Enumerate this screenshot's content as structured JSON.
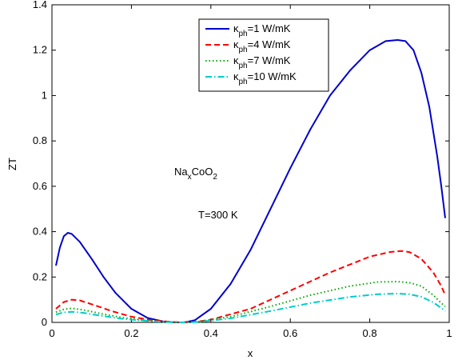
{
  "chart_data": {
    "type": "line",
    "xlabel": "x",
    "ylabel": "ZT",
    "xlim": [
      0,
      1
    ],
    "ylim": [
      0,
      1.4
    ],
    "xticks": [
      0,
      0.2,
      0.4,
      0.6,
      0.8,
      1
    ],
    "xtick_labels": [
      "0",
      "0.2",
      "0.4",
      "0.6",
      "0.8",
      "1"
    ],
    "yticks": [
      0,
      0.2,
      0.4,
      0.6,
      0.8,
      1,
      1.2,
      1.4
    ],
    "ytick_labels": [
      "0",
      "0.2",
      "0.4",
      "0.6",
      "0.8",
      "1",
      "1.2",
      "1.4"
    ],
    "grid": false,
    "legend_position": "top-center",
    "annotations": {
      "compound": {
        "base": "Na",
        "sub1": "x",
        "mid": "CoO",
        "sub2": "2"
      },
      "temperature": "T=300 K"
    },
    "series": [
      {
        "legend": {
          "symbol": "κ",
          "sub": "ph",
          "text": "=1 W/mK"
        },
        "color": "#0000cc",
        "dash": "solid",
        "x": [
          0.01,
          0.02,
          0.03,
          0.04,
          0.05,
          0.07,
          0.1,
          0.13,
          0.16,
          0.2,
          0.24,
          0.28,
          0.31,
          0.33,
          0.34,
          0.36,
          0.4,
          0.45,
          0.5,
          0.55,
          0.6,
          0.65,
          0.7,
          0.75,
          0.8,
          0.84,
          0.87,
          0.89,
          0.91,
          0.93,
          0.95,
          0.97,
          0.98,
          0.99
        ],
        "y": [
          0.25,
          0.33,
          0.38,
          0.395,
          0.39,
          0.355,
          0.28,
          0.2,
          0.13,
          0.06,
          0.02,
          0.004,
          0.0,
          0.0,
          0.002,
          0.01,
          0.06,
          0.17,
          0.32,
          0.5,
          0.68,
          0.85,
          1.0,
          1.11,
          1.2,
          1.24,
          1.245,
          1.24,
          1.2,
          1.1,
          0.95,
          0.73,
          0.6,
          0.46
        ]
      },
      {
        "legend": {
          "symbol": "κ",
          "sub": "ph",
          "text": "=4 W/mK"
        },
        "color": "#ff0000",
        "dash": "dashed",
        "x": [
          0.01,
          0.03,
          0.05,
          0.07,
          0.1,
          0.15,
          0.2,
          0.25,
          0.3,
          0.33,
          0.36,
          0.4,
          0.5,
          0.6,
          0.7,
          0.8,
          0.85,
          0.88,
          0.9,
          0.93,
          0.96,
          0.98,
          0.99
        ],
        "y": [
          0.06,
          0.09,
          0.1,
          0.097,
          0.08,
          0.05,
          0.025,
          0.01,
          0.002,
          0.0,
          0.002,
          0.012,
          0.06,
          0.14,
          0.22,
          0.29,
          0.31,
          0.315,
          0.31,
          0.28,
          0.22,
          0.16,
          0.12
        ]
      },
      {
        "legend": {
          "symbol": "κ",
          "sub": "ph",
          "text": "=7 W/mK"
        },
        "color": "#00aa00",
        "dash": "dotted",
        "x": [
          0.01,
          0.03,
          0.05,
          0.08,
          0.12,
          0.18,
          0.25,
          0.3,
          0.33,
          0.37,
          0.45,
          0.55,
          0.65,
          0.75,
          0.82,
          0.87,
          0.9,
          0.93,
          0.96,
          0.98,
          0.99
        ],
        "y": [
          0.045,
          0.058,
          0.062,
          0.055,
          0.04,
          0.02,
          0.006,
          0.001,
          0.0,
          0.003,
          0.025,
          0.07,
          0.12,
          0.16,
          0.178,
          0.18,
          0.175,
          0.16,
          0.12,
          0.085,
          0.07
        ]
      },
      {
        "legend": {
          "symbol": "κ",
          "sub": "ph",
          "text": "=10 W/mK"
        },
        "color": "#00cccc",
        "dash": "dashdot",
        "x": [
          0.01,
          0.03,
          0.05,
          0.08,
          0.12,
          0.18,
          0.25,
          0.3,
          0.33,
          0.37,
          0.45,
          0.55,
          0.65,
          0.75,
          0.82,
          0.87,
          0.9,
          0.93,
          0.96,
          0.98,
          0.99
        ],
        "y": [
          0.035,
          0.044,
          0.047,
          0.042,
          0.03,
          0.015,
          0.005,
          0.001,
          0.0,
          0.002,
          0.018,
          0.05,
          0.085,
          0.112,
          0.124,
          0.127,
          0.124,
          0.113,
          0.088,
          0.063,
          0.05
        ]
      }
    ]
  }
}
